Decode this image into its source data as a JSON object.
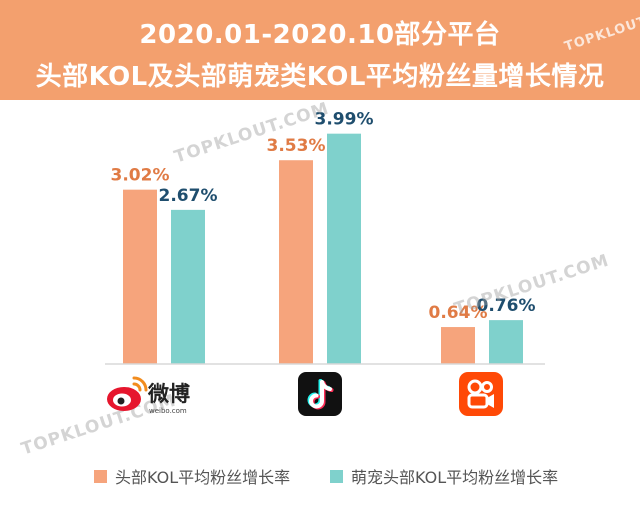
{
  "header": {
    "title_line1": "2020.01-2020.10部分平台",
    "title_line2": "头部KOL及头部萌宠类KOL平均粉丝量增长情况",
    "bg_color": "#f3a06e"
  },
  "watermark": "TOPKLOUT.COM",
  "platforms": [
    {
      "icon": "weibo-icon",
      "logo_text": "微博",
      "logo_subtext": "weibo.com"
    },
    {
      "icon": "douyin-icon"
    },
    {
      "icon": "kuaishou-icon"
    }
  ],
  "chart_data": {
    "type": "bar",
    "categories": [
      "",
      "",
      ""
    ],
    "series": [
      {
        "name": "头部KOL平均粉丝增长率",
        "values": [
          3.02,
          3.53,
          0.64
        ],
        "labels": [
          "3.02%",
          "3.53%",
          "0.64%"
        ],
        "color": "#f6a47c",
        "label_color": "#e07b45"
      },
      {
        "name": "萌宠头部KOL平均粉丝增长率",
        "values": [
          2.67,
          3.99,
          0.76
        ],
        "labels": [
          "2.67%",
          "3.99%",
          "0.76%"
        ],
        "color": "#7fd1cc",
        "label_color": "#1f4e6e"
      }
    ],
    "unit": "%",
    "ylim": [
      0,
      4.4
    ],
    "grid": false,
    "legend_position": "bottom"
  }
}
